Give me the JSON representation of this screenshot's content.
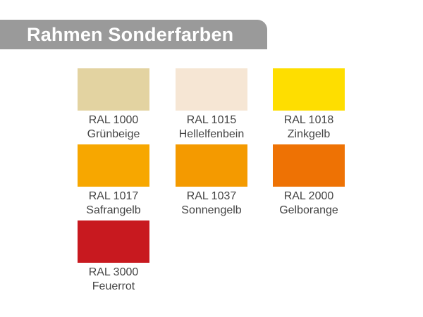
{
  "title": "Rahmen Sonderfarben",
  "swatches": [
    {
      "code": "RAL 1000",
      "name": "Grünbeige",
      "color": "#E3D3A1"
    },
    {
      "code": "RAL 1015",
      "name": "Hellelfenbein",
      "color": "#F6E6D4"
    },
    {
      "code": "RAL 1018",
      "name": "Zinkgelb",
      "color": "#FEDE00"
    },
    {
      "code": "RAL 1017",
      "name": "Safrangelb",
      "color": "#F7A700"
    },
    {
      "code": "RAL 1037",
      "name": "Sonnengelb",
      "color": "#F49A00"
    },
    {
      "code": "RAL 2000",
      "name": "Gelborange",
      "color": "#EE7204"
    },
    {
      "code": "RAL 3000",
      "name": "Feuerrot",
      "color": "#C8191F"
    }
  ]
}
